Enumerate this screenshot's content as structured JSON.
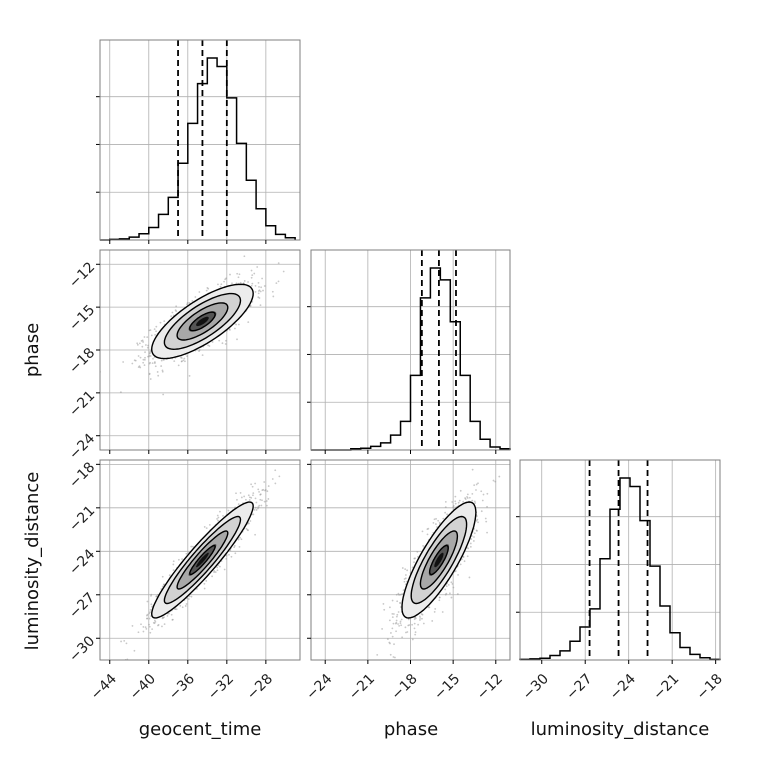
{
  "chart_data": {
    "type": "corner",
    "parameters": [
      "geocent_time",
      "phase",
      "luminosity_distance"
    ],
    "axis_labels": {
      "x": [
        "geocent_time",
        "phase",
        "luminosity_distance"
      ],
      "y": [
        "",
        "phase",
        "luminosity_distance"
      ]
    },
    "ranges": {
      "geocent_time": [
        -45.0,
        -24.5
      ],
      "phase": [
        -25.0,
        -11.0
      ],
      "luminosity_distance": [
        -31.5,
        -17.7
      ]
    },
    "ticks": {
      "geocent_time": [
        -44,
        -40,
        -36,
        -32,
        -28
      ],
      "phase": [
        -24,
        -21,
        -18,
        -15,
        -12
      ],
      "luminosity_distance": [
        -30,
        -27,
        -24,
        -21,
        -18
      ]
    },
    "quantiles": {
      "geocent_time": [
        -37.0,
        -34.5,
        -32.0
      ],
      "phase": [
        -17.2,
        -16.0,
        -14.8
      ],
      "luminosity_distance": [
        -26.7,
        -24.7,
        -22.7
      ]
    },
    "histograms": {
      "geocent_time": {
        "edges": [
          -45,
          -44,
          -43,
          -42,
          -41,
          -40,
          -39,
          -38,
          -37,
          -36,
          -35,
          -34,
          -33,
          -32,
          -31,
          -30,
          -29,
          -28,
          -27,
          -26,
          -25
        ],
        "counts": [
          0,
          1,
          2,
          5,
          11,
          22,
          45,
          75,
          135,
          205,
          275,
          320,
          305,
          250,
          170,
          105,
          55,
          25,
          10,
          4
        ]
      },
      "phase": {
        "edges": [
          -25,
          -24.3,
          -23.6,
          -22.9,
          -22.2,
          -21.5,
          -20.8,
          -20.1,
          -19.4,
          -18.7,
          -18,
          -17.3,
          -16.6,
          -15.9,
          -15.2,
          -14.5,
          -13.8,
          -13.1,
          -12.4,
          -11.7,
          -11
        ],
        "counts": [
          0,
          0,
          0,
          0,
          2,
          3,
          6,
          12,
          25,
          48,
          125,
          255,
          305,
          285,
          215,
          125,
          48,
          18,
          5,
          2
        ]
      },
      "luminosity_distance": {
        "edges": [
          -31.5,
          -30.81,
          -30.12,
          -29.43,
          -28.74,
          -28.05,
          -27.36,
          -26.67,
          -25.98,
          -25.29,
          -24.6,
          -23.91,
          -23.22,
          -22.53,
          -21.84,
          -21.15,
          -20.46,
          -19.77,
          -19.08,
          -18.39,
          -17.7
        ],
        "counts": [
          1,
          2,
          3,
          8,
          16,
          33,
          58,
          90,
          178,
          265,
          320,
          305,
          245,
          165,
          95,
          48,
          22,
          10,
          4,
          1
        ]
      }
    },
    "pairs": [
      {
        "x": "geocent_time",
        "y": "phase",
        "mean": [
          -34.5,
          -16.0
        ],
        "sigma": [
          2.6,
          1.3
        ],
        "correlation": 0.75
      },
      {
        "x": "geocent_time",
        "y": "luminosity_distance",
        "mean": [
          -34.5,
          -24.6
        ],
        "sigma": [
          2.6,
          2.0
        ],
        "correlation": 0.93
      },
      {
        "x": "phase",
        "y": "luminosity_distance",
        "mean": [
          -16.0,
          -24.6
        ],
        "sigma": [
          1.3,
          2.0
        ],
        "correlation": 0.82
      }
    ],
    "contour_levels": [
      0.5,
      1.0,
      1.5,
      2.0
    ],
    "grid": true,
    "colors": {
      "line": "#000000",
      "grid": "#b0b0b0",
      "scatter": "#9a9a9a",
      "frame": "#7f7f7f"
    }
  }
}
